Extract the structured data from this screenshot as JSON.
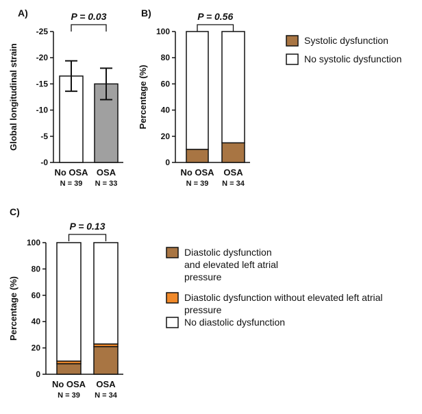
{
  "chart_data": [
    {
      "panel": "A)",
      "type": "bar",
      "ylabel": "Global longitudinal strain",
      "ylim": [
        0,
        -25
      ],
      "yticks": [
        "-0",
        "-5",
        "-10",
        "-15",
        "-20",
        "-25"
      ],
      "categories": [
        "No OSA",
        "OSA"
      ],
      "n_labels": [
        "N = 39",
        "N = 33"
      ],
      "values": [
        -16.5,
        -15.0
      ],
      "errors": [
        2.9,
        3.0
      ],
      "colors": [
        "#ffffff",
        "#a0a0a0"
      ],
      "p_value": "P = 0.03"
    },
    {
      "panel": "B)",
      "type": "bar",
      "stacked": true,
      "ylabel": "Percentage (%)",
      "ylim": [
        0,
        100
      ],
      "yticks": [
        "0",
        "20",
        "40",
        "60",
        "80",
        "100"
      ],
      "categories": [
        "No OSA",
        "OSA"
      ],
      "n_labels": [
        "N = 39",
        "N = 34"
      ],
      "series": [
        {
          "name": "Systolic dysfunction",
          "color": "#a87543",
          "values": [
            10,
            15
          ]
        },
        {
          "name": "No systolic dysfunction",
          "color": "#ffffff",
          "values": [
            90,
            85
          ]
        }
      ],
      "p_value": "P = 0.56",
      "legend_position": "right"
    },
    {
      "panel": "C)",
      "type": "bar",
      "stacked": true,
      "ylabel": "Percentage (%)",
      "ylim": [
        0,
        100
      ],
      "yticks": [
        "0",
        "20",
        "40",
        "60",
        "80",
        "100"
      ],
      "categories": [
        "No OSA",
        "OSA"
      ],
      "n_labels": [
        "N = 39",
        "N = 34"
      ],
      "series": [
        {
          "name": "Diastolic dysfunction and elevated left atrial pressure",
          "color": "#a87543",
          "values": [
            8,
            21
          ]
        },
        {
          "name": "Diastolic dysfunction without elevated left atrial pressure",
          "color": "#f0892a",
          "values": [
            2,
            2
          ]
        },
        {
          "name": "No diastolic dysfunction",
          "color": "#ffffff",
          "values": [
            90,
            77
          ]
        }
      ],
      "p_value": "P = 0.13",
      "legend_position": "right"
    }
  ]
}
